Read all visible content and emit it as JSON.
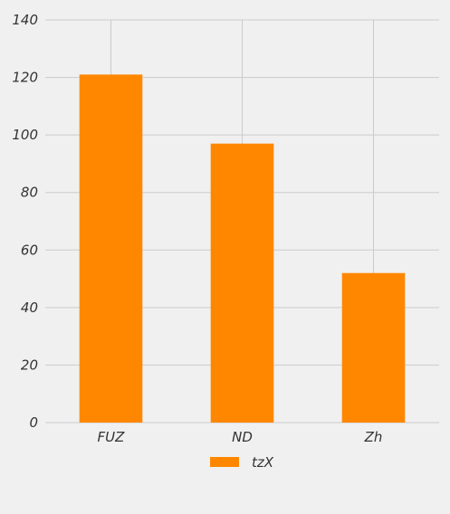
{
  "chart_data": {
    "type": "bar",
    "categories": [
      "FUZ",
      "ND",
      "Zh"
    ],
    "series": [
      {
        "name": "tzX",
        "values": [
          121,
          97,
          52
        ],
        "color": "#ff8700"
      }
    ],
    "ylim": [
      0,
      140
    ],
    "yticks": [
      "0",
      "20",
      "40",
      "60",
      "80",
      "100",
      "120",
      "140"
    ],
    "grid": true,
    "legend_position": "bottom-center",
    "title": "",
    "xlabel": "",
    "ylabel": ""
  }
}
